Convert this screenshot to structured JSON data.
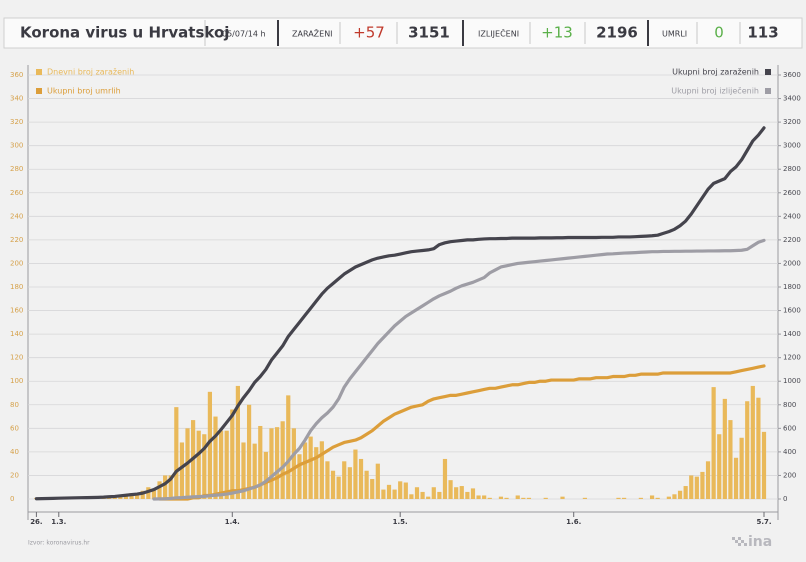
{
  "header": {
    "title": "Korona virus u Hrvatskoj",
    "time": "05/07/14 h",
    "stats": [
      {
        "label": "ZARAŽENI",
        "change": "+57",
        "total": "3151"
      },
      {
        "label": "IZLIJEČENI",
        "change": "+13",
        "total": "2196"
      },
      {
        "label": "UMRLI",
        "change": "0",
        "total": "113"
      }
    ]
  },
  "chart_data": {
    "type": "combo",
    "x": [
      0,
      1,
      2,
      3,
      4,
      5,
      6,
      7,
      8,
      9,
      10,
      11,
      12,
      13,
      14,
      15,
      16,
      17,
      18,
      19,
      20,
      21,
      22,
      23,
      24,
      25,
      26,
      27,
      28,
      29,
      30,
      31,
      32,
      33,
      34,
      35,
      36,
      37,
      38,
      39,
      40,
      41,
      42,
      43,
      44,
      45,
      46,
      47,
      48,
      49,
      50,
      51,
      52,
      53,
      54,
      55,
      56,
      57,
      58,
      59,
      60,
      61,
      62,
      63,
      64,
      65,
      66,
      67,
      68,
      69,
      70,
      71,
      72,
      73,
      74,
      75,
      76,
      77,
      78,
      79,
      80,
      81,
      82,
      83,
      84,
      85,
      86,
      87,
      88,
      89,
      90,
      91,
      92,
      93,
      94,
      95,
      96,
      97,
      98,
      99,
      100,
      101,
      102,
      103,
      104,
      105,
      106,
      107,
      108,
      109,
      110,
      111,
      112,
      113,
      114,
      115,
      116,
      117,
      118,
      119,
      120,
      121,
      122,
      123,
      124,
      125,
      126,
      127,
      128,
      129,
      130
    ],
    "xlim": [
      -1.5,
      132.5
    ],
    "xticks": [
      {
        "value": 0,
        "label": "26."
      },
      {
        "value": 4,
        "label": "1.3."
      },
      {
        "value": 35,
        "label": "1.4."
      },
      {
        "value": 65,
        "label": "1.5."
      },
      {
        "value": 96,
        "label": "1.6."
      },
      {
        "value": 130,
        "label": "5.7."
      }
    ],
    "ylim": [
      0,
      360
    ],
    "yticks": [
      0,
      20,
      40,
      60,
      80,
      100,
      120,
      140,
      160,
      180,
      200,
      220,
      240,
      260,
      280,
      300,
      320,
      340,
      360
    ],
    "y2lim": [
      0,
      3600
    ],
    "y2ticks": [
      0,
      200,
      400,
      600,
      800,
      1000,
      1200,
      1400,
      1600,
      1800,
      2000,
      2200,
      2400,
      2600,
      2800,
      3000,
      3200,
      3400,
      3600
    ],
    "grid": true,
    "series": [
      {
        "name": "Dnevni broj zaraženih",
        "type": "bar",
        "color": "#e9b95a",
        "legend": "top-left",
        "values": [
          1,
          0,
          1,
          1,
          0,
          1,
          0,
          1,
          0,
          1,
          1,
          0,
          1,
          1,
          2,
          3,
          3,
          5,
          5,
          7,
          10,
          8,
          15,
          20,
          20,
          78,
          48,
          60,
          67,
          58,
          55,
          91,
          70,
          58,
          58,
          76,
          96,
          48,
          80,
          47,
          62,
          40,
          60,
          61,
          66,
          88,
          60,
          38,
          48,
          53,
          44,
          49,
          32,
          24,
          19,
          32,
          27,
          42,
          34,
          24,
          17,
          30,
          8,
          12,
          8,
          15,
          14,
          4,
          10,
          6,
          2,
          10,
          6,
          34,
          16,
          10,
          11,
          6,
          9,
          3,
          3,
          1,
          0,
          2,
          1,
          0,
          3,
          1,
          1,
          0,
          0,
          1,
          0,
          0,
          2,
          0,
          0,
          0,
          1,
          0,
          0,
          0,
          0,
          0,
          1,
          1,
          0,
          0,
          1,
          0,
          3,
          1,
          0,
          2,
          4,
          7,
          11,
          20,
          19,
          23,
          32,
          95,
          55,
          85,
          67,
          35,
          52,
          83,
          96,
          86,
          57
        ]
      },
      {
        "name": "Ukupni broj umrlih",
        "type": "line",
        "color": "#dc9e3a",
        "legend": "top-left",
        "values": [
          null,
          null,
          null,
          null,
          null,
          null,
          null,
          null,
          null,
          null,
          null,
          null,
          null,
          null,
          null,
          null,
          null,
          null,
          null,
          null,
          null,
          null,
          0,
          0,
          0,
          0,
          0,
          0,
          1,
          1,
          3,
          3,
          4,
          5,
          6,
          7,
          7,
          8,
          9,
          10,
          12,
          14,
          16,
          18,
          21,
          23,
          26,
          29,
          31,
          33,
          35,
          38,
          41,
          44,
          46,
          48,
          49,
          50,
          52,
          55,
          58,
          62,
          66,
          69,
          72,
          74,
          76,
          78,
          79,
          80,
          83,
          85,
          86,
          87,
          88,
          88,
          89,
          90,
          91,
          92,
          93,
          94,
          94,
          95,
          96,
          97,
          97,
          98,
          99,
          99,
          100,
          100,
          101,
          101,
          101,
          101,
          101,
          102,
          102,
          102,
          103,
          103,
          103,
          104,
          104,
          104,
          105,
          105,
          106,
          106,
          106,
          106,
          107,
          107,
          107,
          107,
          107,
          107,
          107,
          107,
          107,
          107,
          107,
          107,
          107,
          108,
          109,
          110,
          111,
          112,
          113
        ]
      },
      {
        "name": "Ukupni broj zaraženih",
        "type": "line",
        "color": "#45444d",
        "legend": "top-right",
        "axis": "y2",
        "values": [
          2,
          3,
          4,
          5,
          7,
          8,
          9,
          10,
          11,
          12,
          13,
          14,
          16,
          19,
          22,
          27,
          32,
          37,
          42,
          50,
          65,
          80,
          105,
          130,
          170,
          235,
          270,
          305,
          345,
          385,
          430,
          490,
          535,
          590,
          650,
          710,
          790,
          860,
          920,
          990,
          1040,
          1100,
          1180,
          1240,
          1300,
          1380,
          1440,
          1500,
          1560,
          1620,
          1680,
          1740,
          1790,
          1830,
          1870,
          1910,
          1940,
          1970,
          1990,
          2010,
          2030,
          2045,
          2055,
          2065,
          2070,
          2080,
          2090,
          2100,
          2105,
          2110,
          2115,
          2125,
          2160,
          2175,
          2185,
          2190,
          2195,
          2200,
          2200,
          2205,
          2208,
          2210,
          2210,
          2212,
          2212,
          2215,
          2215,
          2215,
          2215,
          2215,
          2217,
          2217,
          2217,
          2218,
          2218,
          2220,
          2220,
          2220,
          2220,
          2220,
          2220,
          2222,
          2222,
          2222,
          2225,
          2225,
          2225,
          2227,
          2230,
          2232,
          2235,
          2240,
          2255,
          2270,
          2290,
          2320,
          2360,
          2420,
          2490,
          2560,
          2630,
          2680,
          2700,
          2720,
          2780,
          2820,
          2880,
          2960,
          3040,
          3090,
          3151
        ]
      },
      {
        "name": "Ukupni broj izliječenih",
        "type": "line",
        "color": "#9e9da5",
        "legend": "top-right",
        "axis": "y2",
        "values": [
          null,
          null,
          null,
          null,
          null,
          null,
          null,
          null,
          null,
          null,
          null,
          null,
          null,
          null,
          null,
          null,
          null,
          null,
          null,
          null,
          null,
          0,
          1,
          2,
          5,
          10,
          12,
          15,
          18,
          20,
          22,
          28,
          32,
          36,
          42,
          50,
          60,
          70,
          85,
          100,
          120,
          150,
          190,
          230,
          270,
          320,
          380,
          430,
          500,
          580,
          640,
          690,
          730,
          780,
          850,
          950,
          1020,
          1080,
          1140,
          1200,
          1260,
          1320,
          1370,
          1420,
          1470,
          1510,
          1550,
          1580,
          1610,
          1640,
          1670,
          1700,
          1725,
          1745,
          1765,
          1790,
          1810,
          1825,
          1840,
          1860,
          1880,
          1920,
          1945,
          1970,
          1980,
          1990,
          2000,
          2005,
          2010,
          2015,
          2020,
          2025,
          2030,
          2035,
          2040,
          2045,
          2050,
          2055,
          2060,
          2065,
          2070,
          2075,
          2080,
          2082,
          2085,
          2088,
          2090,
          2092,
          2095,
          2097,
          2100,
          2100,
          2102,
          2102,
          2103,
          2103,
          2104,
          2104,
          2105,
          2105,
          2106,
          2106,
          2107,
          2108,
          2108,
          2110,
          2112,
          2120,
          2150,
          2180,
          2196
        ]
      }
    ]
  },
  "footer": {
    "source": "Izvor: koronavirus.hr",
    "logo": "ina"
  }
}
